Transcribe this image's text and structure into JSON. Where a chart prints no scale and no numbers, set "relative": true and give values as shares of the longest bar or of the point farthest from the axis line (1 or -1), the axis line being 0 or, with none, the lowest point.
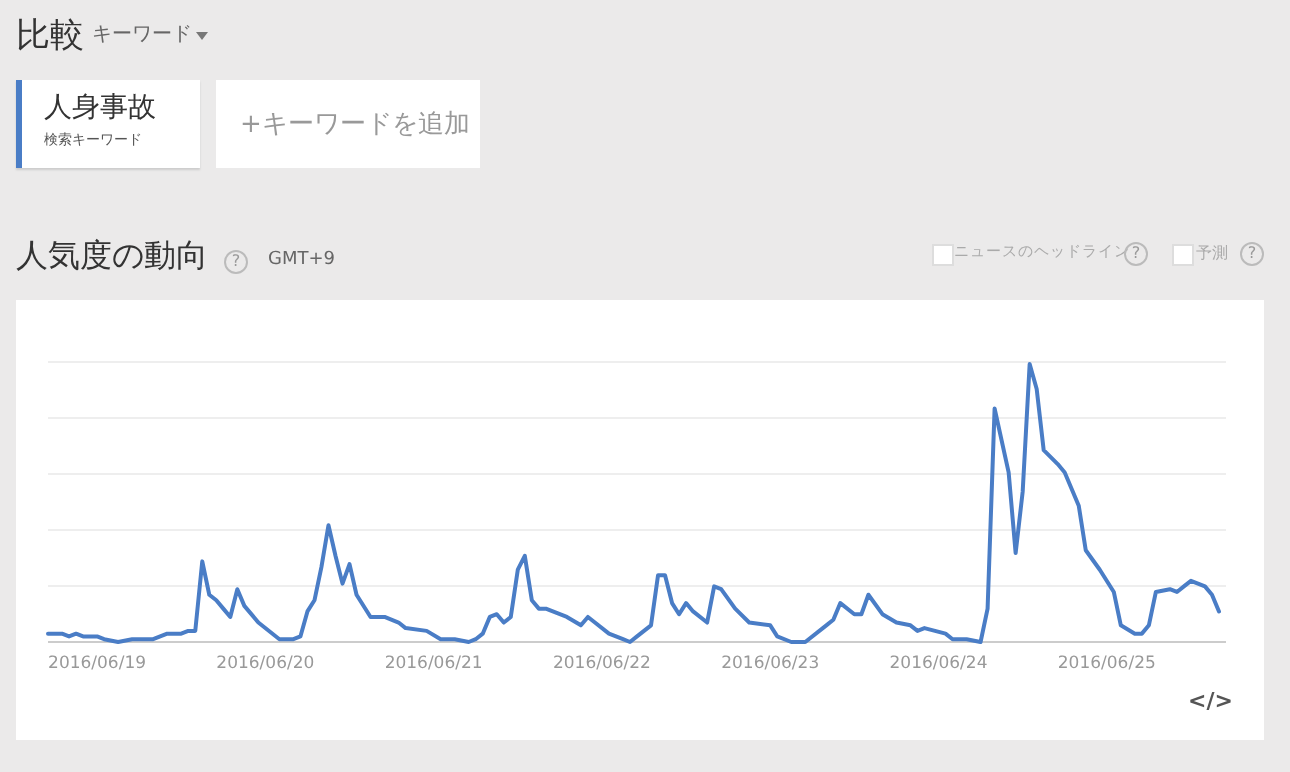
{
  "chart_data": {
    "type": "line",
    "title": "人気度の動向",
    "subtitle": "GMT+9",
    "relative": true,
    "grid": "y",
    "legend": "top left",
    "marker": "none",
    "line_style": "solid",
    "annotations": [
      "比較",
      "キーワード",
      "検索キーワード",
      "+キーワードを追加",
      "?",
      "ニュースのヘッドライン",
      "?",
      "予測",
      "?",
      "</>"
    ],
    "xlim": [
      "2016-06-18T17:00",
      "2016-06-25T17:00"
    ],
    "xticks": [
      {
        "value": "2016-06-19T00:00",
        "label": "2016/06/19"
      },
      {
        "value": "2016-06-20T00:00",
        "label": "2016/06/20"
      },
      {
        "value": "2016-06-21T00:00",
        "label": "2016/06/21"
      },
      {
        "value": "2016-06-22T00:00",
        "label": "2016/06/22"
      },
      {
        "value": "2016-06-23T00:00",
        "label": "2016/06/23"
      },
      {
        "value": "2016-06-24T00:00",
        "label": "2016/06/24"
      },
      {
        "value": "2016-06-25T00:00",
        "label": "2016/06/25"
      }
    ],
    "x": [
      "2016-06-18T17:00",
      "2016-06-18T19:00",
      "2016-06-18T20:00",
      "2016-06-18T21:00",
      "2016-06-18T22:00",
      "2016-06-19T00:00",
      "2016-06-19T01:00",
      "2016-06-19T03:00",
      "2016-06-19T05:00",
      "2016-06-19T07:00",
      "2016-06-19T08:00",
      "2016-06-19T10:00",
      "2016-06-19T12:00",
      "2016-06-19T13:00",
      "2016-06-19T14:00",
      "2016-06-19T15:00",
      "2016-06-19T16:00",
      "2016-06-19T17:00",
      "2016-06-19T18:00",
      "2016-06-19T19:00",
      "2016-06-19T20:00",
      "2016-06-19T21:00",
      "2016-06-19T23:00",
      "2016-06-20T02:00",
      "2016-06-20T04:00",
      "2016-06-20T05:00",
      "2016-06-20T06:00",
      "2016-06-20T07:00",
      "2016-06-20T08:00",
      "2016-06-20T09:00",
      "2016-06-20T10:00",
      "2016-06-20T11:00",
      "2016-06-20T12:00",
      "2016-06-20T13:00",
      "2016-06-20T15:00",
      "2016-06-20T17:00",
      "2016-06-20T19:00",
      "2016-06-20T20:00",
      "2016-06-20T23:00",
      "2016-06-21T01:00",
      "2016-06-21T03:00",
      "2016-06-21T05:00",
      "2016-06-21T06:00",
      "2016-06-21T07:00",
      "2016-06-21T08:00",
      "2016-06-21T09:00",
      "2016-06-21T10:00",
      "2016-06-21T11:00",
      "2016-06-21T12:00",
      "2016-06-21T13:00",
      "2016-06-21T14:00",
      "2016-06-21T15:00",
      "2016-06-21T16:00",
      "2016-06-21T19:00",
      "2016-06-21T21:00",
      "2016-06-21T22:00",
      "2016-06-21T23:00",
      "2016-06-22T01:00",
      "2016-06-22T03:00",
      "2016-06-22T04:00",
      "2016-06-22T05:00",
      "2016-06-22T07:00",
      "2016-06-22T08:00",
      "2016-06-22T09:00",
      "2016-06-22T10:00",
      "2016-06-22T11:00",
      "2016-06-22T12:00",
      "2016-06-22T13:00",
      "2016-06-22T15:00",
      "2016-06-22T16:00",
      "2016-06-22T17:00",
      "2016-06-22T19:00",
      "2016-06-22T21:00",
      "2016-06-23T00:00",
      "2016-06-23T01:00",
      "2016-06-23T03:00",
      "2016-06-23T05:00",
      "2016-06-23T08:00",
      "2016-06-23T09:00",
      "2016-06-23T10:00",
      "2016-06-23T12:00",
      "2016-06-23T13:00",
      "2016-06-23T14:00",
      "2016-06-23T16:00",
      "2016-06-23T18:00",
      "2016-06-23T20:00",
      "2016-06-23T21:00",
      "2016-06-23T22:00",
      "2016-06-24T01:00",
      "2016-06-24T02:00",
      "2016-06-24T04:00",
      "2016-06-24T06:00",
      "2016-06-24T07:00",
      "2016-06-24T08:00",
      "2016-06-24T10:00",
      "2016-06-24T11:00",
      "2016-06-24T12:00",
      "2016-06-24T13:00",
      "2016-06-24T14:00",
      "2016-06-24T15:00",
      "2016-06-24T17:00",
      "2016-06-24T18:00",
      "2016-06-24T20:00",
      "2016-06-24T21:00",
      "2016-06-24T23:00",
      "2016-06-25T01:00",
      "2016-06-25T02:00",
      "2016-06-25T04:00",
      "2016-06-25T05:00",
      "2016-06-25T06:00",
      "2016-06-25T07:00",
      "2016-06-25T09:00",
      "2016-06-25T10:00",
      "2016-06-25T11:00",
      "2016-06-25T12:00",
      "2016-06-25T14:00",
      "2016-06-25T15:00",
      "2016-06-25T16:00"
    ],
    "series": [
      {
        "name": "人身事故",
        "color": "#4a7dc6",
        "values": [
          0.03,
          0.03,
          0.02,
          0.03,
          0.02,
          0.02,
          0.01,
          0,
          0.01,
          0.01,
          0.01,
          0.03,
          0.03,
          0.04,
          0.04,
          0.29,
          0.17,
          0.15,
          0.12,
          0.09,
          0.19,
          0.13,
          0.07,
          0.01,
          0.01,
          0.02,
          0.11,
          0.15,
          0.27,
          0.42,
          0.31,
          0.21,
          0.28,
          0.17,
          0.09,
          0.09,
          0.07,
          0.05,
          0.04,
          0.01,
          0.01,
          0,
          0.01,
          0.03,
          0.09,
          0.1,
          0.07,
          0.09,
          0.26,
          0.31,
          0.15,
          0.12,
          0.12,
          0.09,
          0.06,
          0.09,
          0.07,
          0.03,
          0.01,
          0,
          0.02,
          0.06,
          0.24,
          0.24,
          0.14,
          0.1,
          0.14,
          0.11,
          0.07,
          0.2,
          0.19,
          0.12,
          0.07,
          0.06,
          0.02,
          0,
          0,
          0.06,
          0.08,
          0.14,
          0.1,
          0.1,
          0.17,
          0.1,
          0.07,
          0.06,
          0.04,
          0.05,
          0.03,
          0.01,
          0.01,
          0,
          0.12,
          0.84,
          0.61,
          0.32,
          0.54,
          1,
          0.91,
          0.69,
          0.64,
          0.61,
          0.49,
          0.33,
          0.26,
          0.18,
          0.06,
          0.03,
          0.03,
          0.06,
          0.18,
          0.19,
          0.18,
          0.2,
          0.22,
          0.2,
          0.17,
          0.11
        ]
      }
    ]
  }
}
